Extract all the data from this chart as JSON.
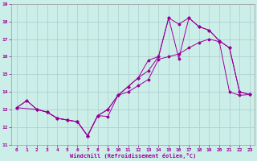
{
  "bg_color": "#cceee8",
  "grid_color": "#aacccc",
  "line_color": "#990099",
  "xlim_min": -0.5,
  "xlim_max": 23.5,
  "ylim_min": 11,
  "ylim_max": 19,
  "yticks": [
    11,
    12,
    13,
    14,
    15,
    16,
    17,
    18,
    19
  ],
  "xticks": [
    0,
    1,
    2,
    3,
    4,
    5,
    6,
    7,
    8,
    9,
    10,
    11,
    12,
    13,
    14,
    15,
    16,
    17,
    18,
    19,
    20,
    21,
    22,
    23
  ],
  "xlabel": "Windchill (Refroidissement éolien,°C)",
  "line1_x": [
    0,
    1,
    2,
    3,
    4,
    5,
    6,
    7,
    8,
    9,
    10,
    11,
    12,
    13,
    14,
    15,
    16,
    17,
    18,
    19,
    20,
    21,
    22,
    23
  ],
  "line1_y": [
    13.1,
    13.5,
    13.0,
    12.85,
    12.5,
    12.4,
    12.3,
    11.5,
    12.65,
    12.6,
    13.8,
    14.0,
    14.35,
    14.7,
    15.85,
    16.0,
    16.15,
    16.5,
    16.8,
    17.0,
    16.85,
    14.0,
    13.8,
    13.85
  ],
  "line2_x": [
    0,
    1,
    2,
    3,
    4,
    5,
    6,
    7,
    8,
    9,
    10,
    11,
    12,
    13,
    14,
    15,
    16,
    17,
    18,
    19,
    20,
    21,
    22,
    23
  ],
  "line2_y": [
    13.1,
    13.5,
    13.0,
    12.85,
    12.5,
    12.4,
    12.3,
    11.5,
    12.65,
    13.0,
    13.8,
    14.3,
    14.8,
    15.8,
    16.0,
    18.2,
    17.85,
    18.2,
    17.7,
    17.5,
    16.9,
    16.5,
    14.0,
    13.85
  ],
  "line3_x": [
    0,
    2,
    3,
    4,
    5,
    6,
    7,
    8,
    9,
    10,
    11,
    12,
    13,
    14,
    15,
    16,
    17,
    18,
    19,
    20,
    21,
    22,
    23
  ],
  "line3_y": [
    13.1,
    13.0,
    12.85,
    12.5,
    12.4,
    12.3,
    11.5,
    12.65,
    13.0,
    13.8,
    14.3,
    14.8,
    15.2,
    16.0,
    18.2,
    15.9,
    18.2,
    17.7,
    17.5,
    16.9,
    16.5,
    14.0,
    13.85
  ]
}
